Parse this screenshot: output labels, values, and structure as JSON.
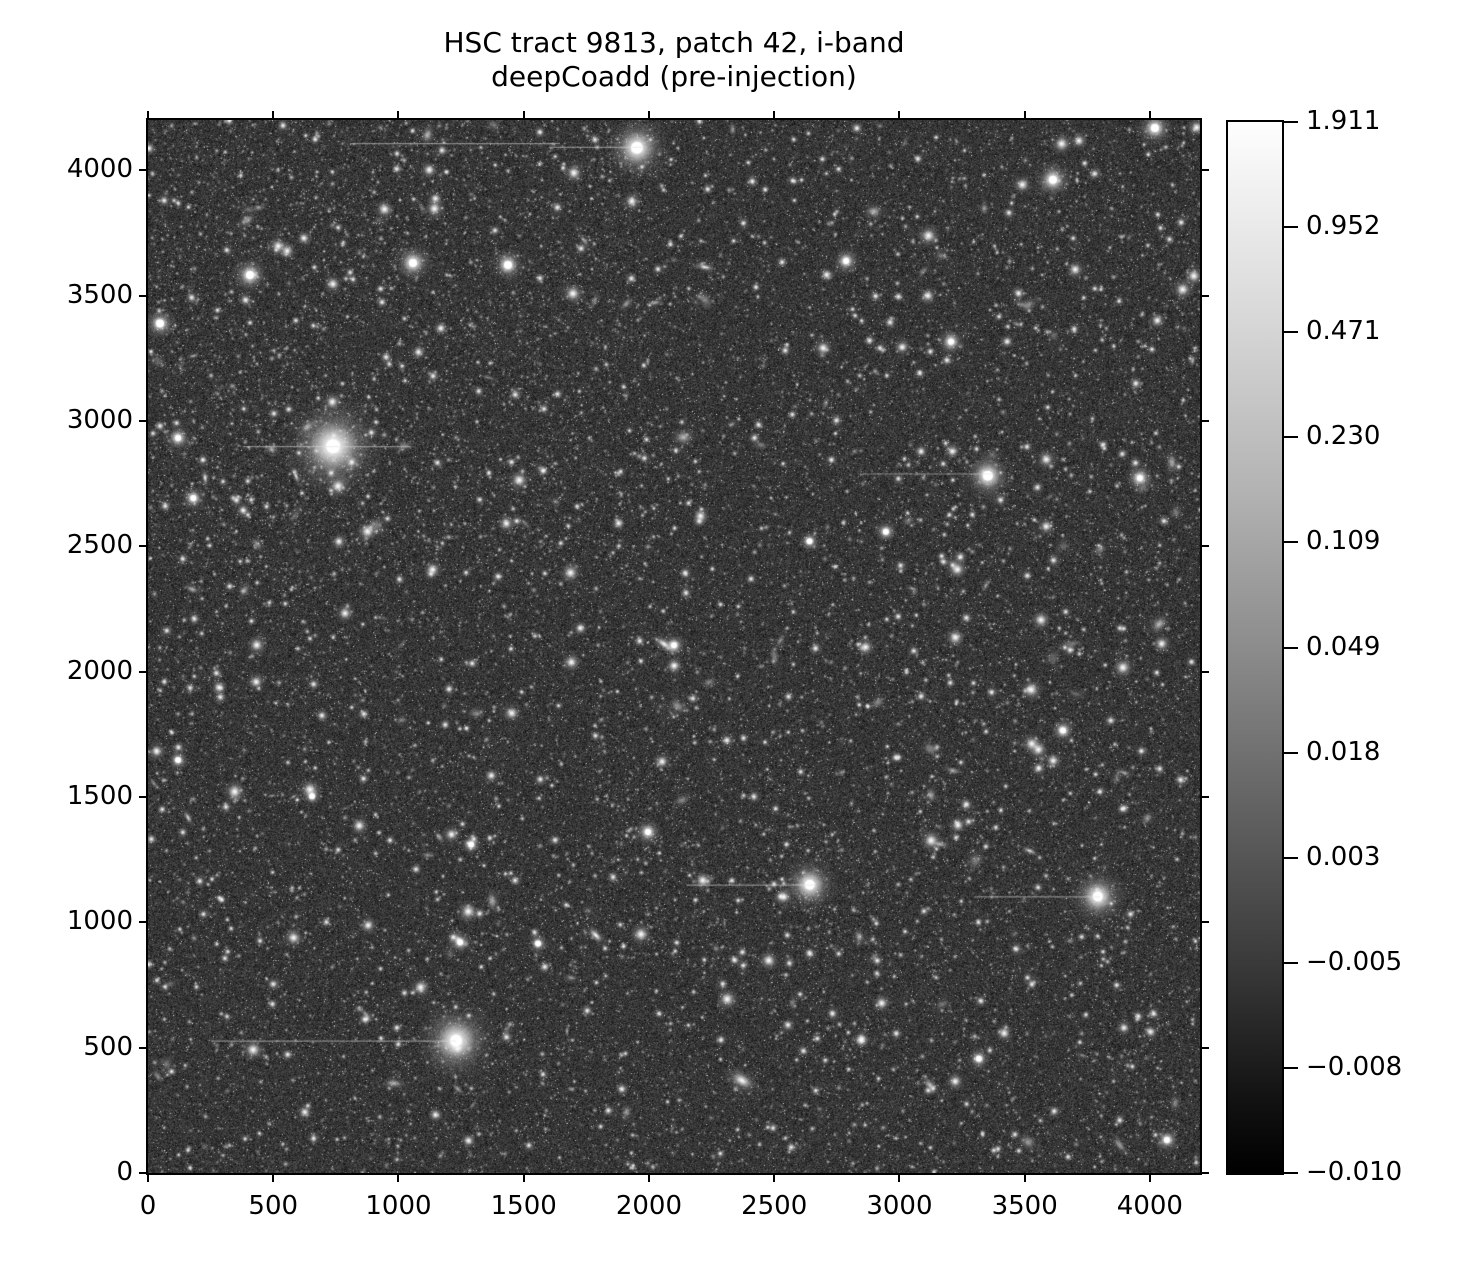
{
  "figure": {
    "title_line1": "HSC tract 9813, patch 42, i-band",
    "title_line2": "deepCoadd (pre-injection)",
    "background_color": "#ffffff",
    "text_color": "#000000"
  },
  "chart_data": {
    "type": "heatmap",
    "title": "HSC tract 9813, patch 42, i-band deepCoadd (pre-injection)",
    "description": "Grayscale deep-sky coadd image of a dense star/galaxy field shown with an asinh-like stretch; greyscale colormap, white = bright. Ticks drawn on all four sides, labels on left and bottom only.",
    "xlabel": "",
    "ylabel": "",
    "xlim": [
      0,
      4200
    ],
    "ylim": [
      0,
      4200
    ],
    "x_ticks": [
      0,
      500,
      1000,
      1500,
      2000,
      2500,
      3000,
      3500,
      4000
    ],
    "y_ticks": [
      0,
      500,
      1000,
      1500,
      2000,
      2500,
      3000,
      3500,
      4000
    ],
    "grid": false,
    "colorbar": {
      "position": "right",
      "vmin": -0.01,
      "vmax": 1.911,
      "scale": "asinh",
      "top_color": "#ffffff",
      "bottom_color": "#000000",
      "tick_labels": [
        "1.911",
        "0.952",
        "0.471",
        "0.230",
        "0.109",
        "0.049",
        "0.018",
        "0.003",
        "−0.005",
        "−0.008",
        "−0.010"
      ]
    },
    "image": {
      "render": {
        "seed": 42,
        "tiny_stars": 12000,
        "cluster_extra_stars": 1400,
        "small_stars": 2000,
        "medium_stars": 420,
        "large_stars": 110,
        "random_galaxies": 150,
        "noise_base": 8,
        "noise_range": 92
      },
      "bright_stars": [
        [
          739,
          2899,
          46,
          7
        ],
        [
          1230,
          528,
          36,
          6
        ],
        [
          1952,
          4089,
          30,
          6
        ],
        [
          2642,
          1150,
          26,
          5
        ],
        [
          3792,
          1103,
          26,
          5
        ],
        [
          3353,
          2781,
          23,
          5
        ],
        [
          3613,
          3962,
          18,
          4
        ],
        [
          407,
          3582,
          17,
          4
        ],
        [
          1058,
          3630,
          18,
          4
        ],
        [
          1437,
          3622,
          16,
          4
        ],
        [
          48,
          3388,
          15,
          4
        ],
        [
          120,
          2932,
          13,
          3
        ],
        [
          3206,
          3316,
          13,
          3
        ],
        [
          4020,
          4168,
          17,
          4
        ],
        [
          2787,
          3638,
          13,
          3
        ],
        [
          3960,
          2772,
          14,
          3
        ],
        [
          1996,
          1360,
          13,
          3
        ],
        [
          3653,
          1765,
          12,
          3
        ],
        [
          181,
          2692,
          12,
          3
        ],
        [
          2946,
          2558,
          11,
          3
        ],
        [
          3317,
          456,
          11,
          3
        ],
        [
          1246,
          920,
          11,
          3
        ],
        [
          1557,
          915,
          10,
          3
        ],
        [
          2100,
          2105,
          12,
          3
        ],
        [
          655,
          1503,
          9,
          3
        ],
        [
          120,
          1647,
          10,
          3
        ],
        [
          4068,
          132,
          12,
          3
        ],
        [
          2641,
          2520,
          10,
          3
        ],
        [
          1290,
          1310,
          10,
          3
        ]
      ],
      "galaxies": [
        [
          2371,
          369,
          22,
          13,
          30,
          0.75
        ],
        [
          2060,
          2110,
          20,
          8,
          35,
          0.7
        ],
        [
          1788,
          948,
          16,
          7,
          45,
          0.8
        ],
        [
          228,
          2772,
          12,
          5,
          80,
          0.7
        ],
        [
          2223,
          3613,
          16,
          6,
          10,
          0.65
        ],
        [
          591,
          2780,
          14,
          5,
          70,
          0.6
        ],
        [
          3520,
          1285,
          14,
          5,
          25,
          0.6
        ],
        [
          160,
          1418,
          13,
          5,
          60,
          0.6
        ]
      ],
      "streaks": [
        [
          380,
          1050,
          2899
        ],
        [
          250,
          1230,
          528
        ],
        [
          1600,
          1975,
          4093
        ],
        [
          806,
          1645,
          4108
        ],
        [
          2150,
          2660,
          1150
        ],
        [
          2850,
          3370,
          2790
        ],
        [
          3300,
          3800,
          1103
        ]
      ]
    }
  }
}
